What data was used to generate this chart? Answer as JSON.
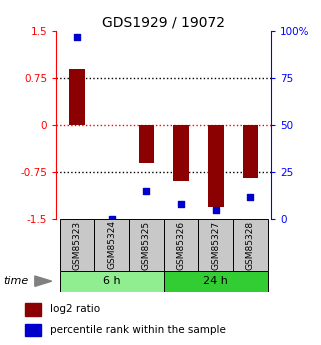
{
  "title": "GDS1929 / 19072",
  "samples": [
    "GSM85323",
    "GSM85324",
    "GSM85325",
    "GSM85326",
    "GSM85327",
    "GSM85328"
  ],
  "log2_ratio": [
    0.9,
    0.0,
    -0.6,
    -0.9,
    -1.3,
    -0.85
  ],
  "percentile": [
    97,
    0,
    15,
    8,
    5,
    12
  ],
  "ylim_left": [
    -1.5,
    1.5
  ],
  "ylim_right": [
    0,
    100
  ],
  "yticks_left": [
    -1.5,
    -0.75,
    0,
    0.75,
    1.5
  ],
  "ytick_labels_left": [
    "-1.5",
    "-0.75",
    "0",
    "0.75",
    "1.5"
  ],
  "yticks_right": [
    0,
    25,
    50,
    75,
    100
  ],
  "ytick_labels_right": [
    "0",
    "25",
    "50",
    "75",
    "100%"
  ],
  "hlines": [
    0.75,
    -0.75
  ],
  "bar_color": "#8B0000",
  "dot_color": "#0000CD",
  "bar_width": 0.45,
  "group1_label": "6 h",
  "group2_label": "24 h",
  "group1_color": "#90EE90",
  "group2_color": "#32CD32",
  "time_label": "time",
  "legend_bar_label": "log2 ratio",
  "legend_dot_label": "percentile rank within the sample",
  "title_fontsize": 10,
  "tick_fontsize": 7.5,
  "label_fontsize": 6.5,
  "time_fontsize": 8,
  "group_fontsize": 8,
  "legend_fontsize": 7.5,
  "sample_cell_color": "#C8C8C8",
  "fig_width": 3.21,
  "fig_height": 3.45,
  "dpi": 100
}
